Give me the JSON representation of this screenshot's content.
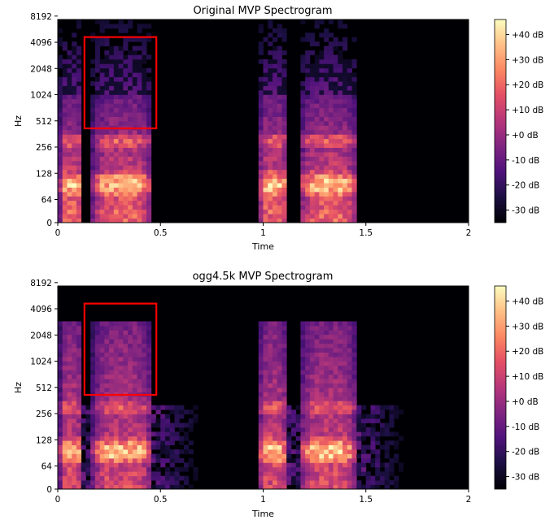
{
  "chart_data": [
    {
      "type": "heatmap",
      "title": "Original MVP Spectrogram",
      "xlabel": "Time",
      "ylabel": "Hz",
      "xlim": [
        0,
        2
      ],
      "x_ticks": [
        "0",
        "0.5",
        "1",
        "1.5",
        "2"
      ],
      "y_scale": "symlog",
      "y_ticks": [
        "0",
        "64",
        "128",
        "256",
        "512",
        "1024",
        "2048",
        "4096",
        "8192"
      ],
      "colorbar": {
        "ticks": [
          "+40 dB",
          "+30 dB",
          "+20 dB",
          "+10 dB",
          "+0 dB",
          "-10 dB",
          "-20 dB",
          "-30 dB"
        ],
        "range_db": [
          -35,
          46
        ],
        "colormap": "magma"
      },
      "voiced_segments_s": [
        [
          0.01,
          0.12
        ],
        [
          0.17,
          0.46
        ],
        [
          0.98,
          1.12
        ],
        [
          1.18,
          1.46
        ]
      ],
      "highlight_box": {
        "time_s": [
          0.13,
          0.48
        ],
        "freq_hz": [
          420,
          4700
        ],
        "color": "#ff0000"
      }
    },
    {
      "type": "heatmap",
      "title": "ogg4.5k MVP Spectrogram",
      "xlabel": "Time",
      "ylabel": "Hz",
      "xlim": [
        0,
        2
      ],
      "x_ticks": [
        "0",
        "0.5",
        "1",
        "1.5",
        "2"
      ],
      "y_scale": "symlog",
      "y_ticks": [
        "0",
        "64",
        "128",
        "256",
        "512",
        "1024",
        "2048",
        "4096",
        "8192"
      ],
      "colorbar": {
        "ticks": [
          "+40 dB",
          "+30 dB",
          "+20 dB",
          "+10 dB",
          "+0 dB",
          "-10 dB",
          "-20 dB",
          "-30 dB"
        ],
        "range_db": [
          -35,
          46
        ],
        "colormap": "magma"
      },
      "voiced_segments_s": [
        [
          0.01,
          0.12
        ],
        [
          0.17,
          0.46
        ],
        [
          0.98,
          1.12
        ],
        [
          1.18,
          1.46
        ]
      ],
      "highlight_box": {
        "time_s": [
          0.13,
          0.48
        ],
        "freq_hz": [
          420,
          4700
        ],
        "color": "#ff0000"
      }
    }
  ]
}
